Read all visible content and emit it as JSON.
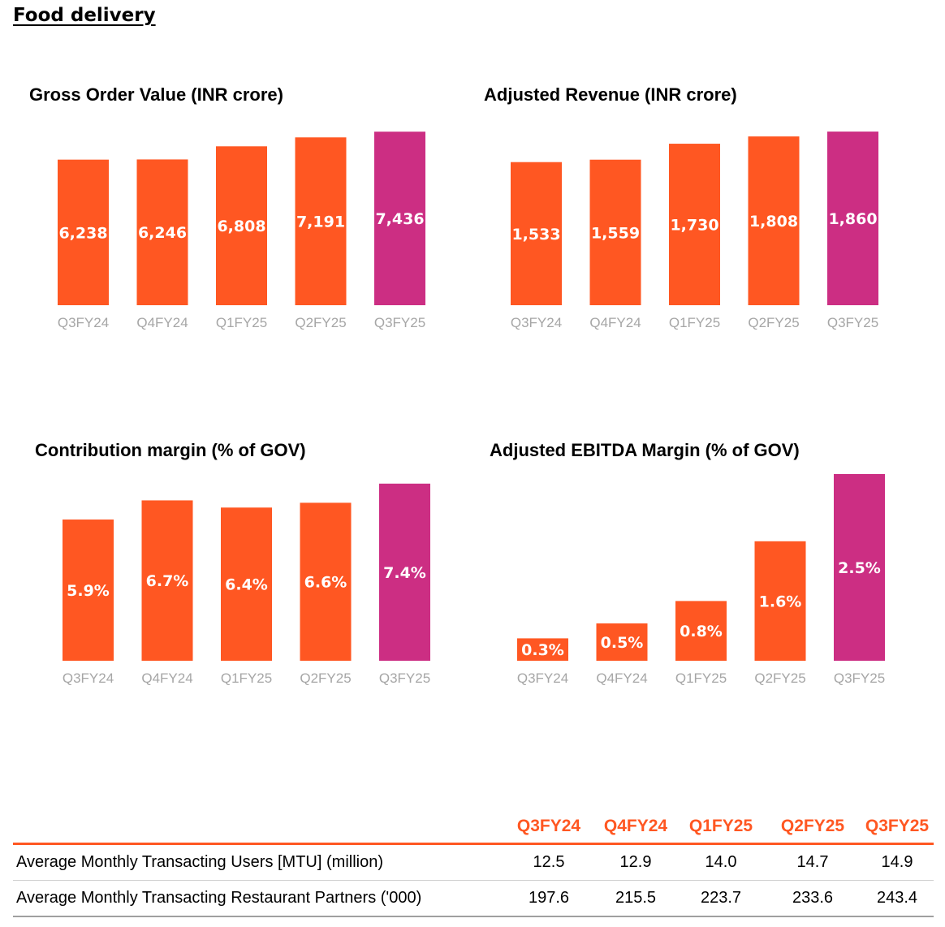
{
  "section_title": "Food delivery",
  "colors": {
    "bar": "#ff5722",
    "highlight": "#cc2e83",
    "category": "#a6a6a6"
  },
  "chart_data": [
    {
      "type": "bar",
      "title": "Gross Order Value (INR crore)",
      "categories": [
        "Q3FY24",
        "Q4FY24",
        "Q1FY25",
        "Q2FY25",
        "Q3FY25"
      ],
      "values": [
        6238,
        6246,
        6808,
        7191,
        7436
      ],
      "labels": [
        "6,238",
        "6,246",
        "6,808",
        "7,191",
        "7,436"
      ],
      "highlight_index": 4,
      "ylim": [
        0,
        8000
      ]
    },
    {
      "type": "bar",
      "title": "Adjusted Revenue (INR crore)",
      "categories": [
        "Q3FY24",
        "Q4FY24",
        "Q1FY25",
        "Q2FY25",
        "Q3FY25"
      ],
      "values": [
        1533,
        1559,
        1730,
        1808,
        1860
      ],
      "labels": [
        "1,533",
        "1,559",
        "1,730",
        "1,808",
        "1,860"
      ],
      "highlight_index": 4,
      "ylim": [
        0,
        2000
      ]
    },
    {
      "type": "bar",
      "title": "Contribution margin (% of GOV)",
      "categories": [
        "Q3FY24",
        "Q4FY24",
        "Q1FY25",
        "Q2FY25",
        "Q3FY25"
      ],
      "values": [
        5.9,
        6.7,
        6.4,
        6.6,
        7.4
      ],
      "labels": [
        "5.9%",
        "6.7%",
        "6.4%",
        "6.6%",
        "7.4%"
      ],
      "highlight_index": 4,
      "ylim": [
        0,
        7.8
      ]
    },
    {
      "type": "bar",
      "title": "Adjusted EBITDA Margin (% of GOV)",
      "categories": [
        "Q3FY24",
        "Q4FY24",
        "Q1FY25",
        "Q2FY25",
        "Q3FY25"
      ],
      "values": [
        0.3,
        0.5,
        0.8,
        1.6,
        2.5
      ],
      "labels": [
        "0.3%",
        "0.5%",
        "0.8%",
        "1.6%",
        "2.5%"
      ],
      "highlight_index": 4,
      "ylim": [
        0,
        2.5
      ]
    }
  ],
  "kpi_table": {
    "columns": [
      "Q3FY24",
      "Q4FY24",
      "Q1FY25",
      "Q2FY25",
      "Q3FY25"
    ],
    "rows": [
      {
        "label": "Average Monthly Transacting Users [MTU] (million)",
        "values": [
          "12.5",
          "12.9",
          "14.0",
          "14.7",
          "14.9"
        ]
      },
      {
        "label": "Average Monthly Transacting Restaurant Partners ('000)",
        "values": [
          "197.6",
          "215.5",
          "223.7",
          "233.6",
          "243.4"
        ]
      }
    ]
  }
}
